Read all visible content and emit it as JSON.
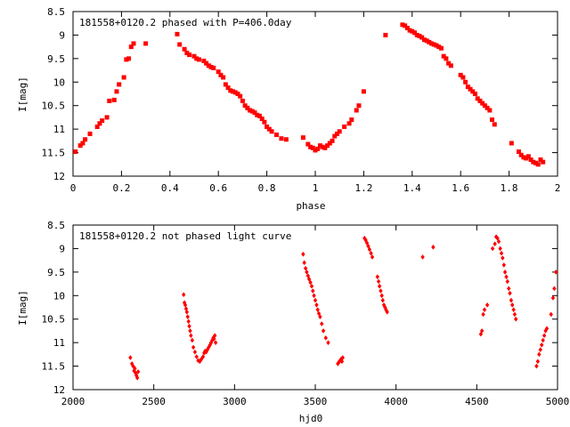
{
  "chart_data": [
    {
      "type": "scatter",
      "title": "181558+0120.2 phased with P=406.0day",
      "xlabel": "phase",
      "ylabel": "I[mag]",
      "xlim": [
        0,
        2
      ],
      "ylim": [
        12,
        8.5
      ],
      "y_inverted": true,
      "xticks": [
        "0",
        "0.2",
        "0.4",
        "0.6",
        "0.8",
        "1",
        "1.2",
        "1.4",
        "1.6",
        "1.8",
        "2"
      ],
      "xtick_values": [
        0,
        0.2,
        0.4,
        0.6,
        0.8,
        1.0,
        1.2,
        1.4,
        1.6,
        1.8,
        2.0
      ],
      "yticks": [
        "8.5",
        "9",
        "9.5",
        "10",
        "10.5",
        "11",
        "11.5",
        "12"
      ],
      "ytick_values": [
        8.5,
        9,
        9.5,
        10,
        10.5,
        11,
        11.5,
        12
      ],
      "marker_color": "#ff0000",
      "marker": "filled-square",
      "x": [
        0.01,
        0.03,
        0.04,
        0.05,
        0.07,
        0.1,
        0.11,
        0.12,
        0.14,
        0.15,
        0.17,
        0.18,
        0.19,
        0.21,
        0.22,
        0.23,
        0.24,
        0.25,
        0.3,
        0.43,
        0.44,
        0.46,
        0.47,
        0.48,
        0.5,
        0.51,
        0.52,
        0.54,
        0.55,
        0.56,
        0.57,
        0.58,
        0.6,
        0.61,
        0.62,
        0.63,
        0.64,
        0.65,
        0.66,
        0.67,
        0.68,
        0.69,
        0.7,
        0.71,
        0.72,
        0.73,
        0.74,
        0.75,
        0.76,
        0.77,
        0.78,
        0.79,
        0.8,
        0.81,
        0.82,
        0.84,
        0.86,
        0.88,
        0.95,
        0.97,
        0.98,
        0.99,
        1.0,
        1.01,
        1.02,
        1.03,
        1.04,
        1.05,
        1.06,
        1.07,
        1.08,
        1.09,
        1.1,
        1.12,
        1.14,
        1.15,
        1.17,
        1.18,
        1.2,
        1.29,
        1.36,
        1.37,
        1.38,
        1.39,
        1.4,
        1.41,
        1.42,
        1.43,
        1.44,
        1.45,
        1.46,
        1.47,
        1.48,
        1.49,
        1.5,
        1.51,
        1.52,
        1.53,
        1.54,
        1.55,
        1.56,
        1.6,
        1.61,
        1.62,
        1.63,
        1.64,
        1.65,
        1.66,
        1.67,
        1.68,
        1.69,
        1.7,
        1.71,
        1.72,
        1.73,
        1.74,
        1.81,
        1.84,
        1.85,
        1.86,
        1.87,
        1.88,
        1.89,
        1.9,
        1.91,
        1.92,
        1.93,
        1.94
      ],
      "y": [
        11.48,
        11.35,
        11.3,
        11.22,
        11.1,
        10.95,
        10.88,
        10.82,
        10.75,
        10.4,
        10.38,
        10.2,
        10.05,
        9.9,
        9.52,
        9.5,
        9.25,
        9.18,
        9.18,
        8.98,
        9.2,
        9.3,
        9.38,
        9.42,
        9.45,
        9.5,
        9.52,
        9.55,
        9.6,
        9.65,
        9.68,
        9.7,
        9.78,
        9.85,
        9.9,
        10.05,
        10.12,
        10.18,
        10.2,
        10.22,
        10.25,
        10.3,
        10.4,
        10.5,
        10.55,
        10.6,
        10.62,
        10.65,
        10.7,
        10.72,
        10.78,
        10.85,
        10.95,
        11.0,
        11.05,
        11.12,
        11.2,
        11.22,
        11.18,
        11.32,
        11.38,
        11.4,
        11.45,
        11.42,
        11.35,
        11.38,
        11.4,
        11.35,
        11.3,
        11.25,
        11.15,
        11.1,
        11.05,
        10.95,
        10.88,
        10.8,
        10.6,
        10.5,
        10.2,
        9.0,
        8.78,
        8.8,
        8.85,
        8.9,
        8.92,
        8.95,
        9.0,
        9.02,
        9.05,
        9.1,
        9.12,
        9.15,
        9.18,
        9.2,
        9.22,
        9.25,
        9.28,
        9.45,
        9.5,
        9.6,
        9.65,
        9.85,
        9.9,
        10.0,
        10.1,
        10.15,
        10.2,
        10.25,
        10.35,
        10.4,
        10.45,
        10.5,
        10.55,
        10.6,
        10.8,
        10.9,
        11.3,
        11.48,
        11.55,
        11.6,
        11.62,
        11.58,
        11.65,
        11.7,
        11.72,
        11.75,
        11.65,
        11.7
      ]
    },
    {
      "type": "scatter",
      "title": "181558+0120.2 not phased light curve",
      "xlabel": "hjd0",
      "ylabel": "I[mag]",
      "xlim": [
        2000,
        5000
      ],
      "ylim": [
        12,
        8.5
      ],
      "y_inverted": true,
      "xticks": [
        "2000",
        "2500",
        "3000",
        "3500",
        "4000",
        "4500",
        "5000"
      ],
      "xtick_values": [
        2000,
        2500,
        3000,
        3500,
        4000,
        4500,
        5000
      ],
      "yticks": [
        "8.5",
        "9",
        "9.5",
        "10",
        "10.5",
        "11",
        "11.5",
        "12"
      ],
      "ytick_values": [
        8.5,
        9,
        9.5,
        10,
        10.5,
        11,
        11.5,
        12
      ],
      "marker_color": "#ff0000",
      "marker": "filled-diamond",
      "x": [
        2355,
        2365,
        2372,
        2378,
        2383,
        2388,
        2393,
        2398,
        2403,
        2685,
        2690,
        2695,
        2700,
        2705,
        2710,
        2715,
        2720,
        2725,
        2730,
        2738,
        2745,
        2755,
        2765,
        2775,
        2785,
        2795,
        2805,
        2812,
        2818,
        2825,
        2832,
        2840,
        2848,
        2855,
        2862,
        2868,
        2873,
        2878,
        2883,
        3425,
        3432,
        3440,
        3447,
        3455,
        3462,
        3470,
        3478,
        3485,
        3492,
        3500,
        3508,
        3515,
        3522,
        3530,
        3540,
        3550,
        3565,
        3580,
        3640,
        3645,
        3650,
        3655,
        3660,
        3665,
        3670,
        3805,
        3812,
        3820,
        3828,
        3836,
        3845,
        3853,
        3885,
        3892,
        3898,
        3905,
        3912,
        3918,
        3925,
        3932,
        3938,
        3945,
        4165,
        4230,
        4525,
        4532,
        4540,
        4548,
        4565,
        4598,
        4612,
        4620,
        4628,
        4636,
        4645,
        4653,
        4660,
        4668,
        4675,
        4683,
        4690,
        4698,
        4705,
        4713,
        4720,
        4728,
        4735,
        4742,
        4870,
        4878,
        4886,
        4894,
        4902,
        4910,
        4918,
        4926,
        4934,
        4960,
        4972,
        4980,
        4990
      ],
      "y": [
        11.32,
        11.45,
        11.5,
        11.6,
        11.55,
        11.65,
        11.7,
        11.75,
        11.62,
        9.98,
        10.15,
        10.2,
        10.28,
        10.35,
        10.45,
        10.55,
        10.65,
        10.75,
        10.85,
        10.95,
        11.1,
        11.2,
        11.3,
        11.38,
        11.4,
        11.35,
        11.3,
        11.22,
        11.18,
        11.2,
        11.15,
        11.1,
        11.05,
        11.0,
        10.95,
        10.9,
        10.92,
        10.85,
        11.0,
        9.12,
        9.3,
        9.42,
        9.5,
        9.58,
        9.65,
        9.72,
        9.8,
        9.9,
        10.0,
        10.1,
        10.2,
        10.3,
        10.38,
        10.45,
        10.6,
        10.75,
        10.9,
        11.0,
        11.45,
        11.42,
        11.4,
        11.38,
        11.35,
        11.4,
        11.32,
        8.78,
        8.82,
        8.88,
        8.95,
        9.02,
        9.1,
        9.18,
        9.6,
        9.7,
        9.8,
        9.9,
        10.0,
        10.1,
        10.2,
        10.25,
        10.3,
        10.35,
        9.18,
        8.97,
        10.82,
        10.75,
        10.4,
        10.3,
        10.2,
        9.0,
        8.9,
        8.75,
        8.78,
        8.85,
        9.0,
        9.1,
        9.2,
        9.35,
        9.5,
        9.6,
        9.7,
        9.85,
        9.95,
        10.1,
        10.2,
        10.3,
        10.4,
        10.5,
        11.5,
        11.4,
        11.25,
        11.15,
        11.05,
        10.95,
        10.85,
        10.75,
        10.7,
        10.4,
        10.05,
        9.85,
        9.5
      ]
    }
  ]
}
